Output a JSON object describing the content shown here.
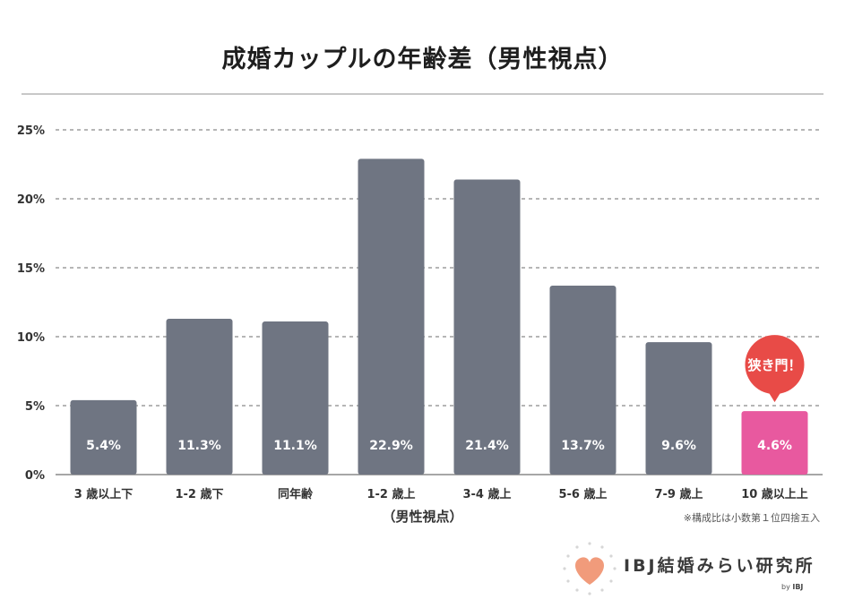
{
  "header": {
    "title": "成婚カップルの年齢差（男性視点）"
  },
  "chart_data": {
    "type": "bar",
    "categories": [
      "3 歳以上下",
      "1-2 歳下",
      "同年齢",
      "1-2 歳上",
      "3-4 歳上",
      "5-6 歳上",
      "7-9 歳上",
      "10 歳以上上"
    ],
    "values": [
      5.4,
      11.3,
      11.1,
      22.9,
      21.4,
      13.7,
      9.6,
      4.6
    ],
    "value_labels": [
      "5.4%",
      "11.3%",
      "11.1%",
      "22.9%",
      "21.4%",
      "13.7%",
      "9.6%",
      "4.6%"
    ],
    "xlabel": "（男性視点）",
    "ylim": [
      0,
      25
    ],
    "yticks": [
      0,
      5,
      10,
      15,
      20,
      25
    ],
    "ytick_labels": [
      "0%",
      "5%",
      "10%",
      "15%",
      "20%",
      "25%"
    ],
    "grid": true,
    "colors": {
      "bar": "#6f7582",
      "highlight": "#e8599f",
      "callout": "#e84b47",
      "grid": "#8a8a8a"
    },
    "highlight_index": 7,
    "annotation": "狭き門！"
  },
  "footnote": "※構成比は小数第１位四捨五入",
  "brand": {
    "name": "IBJ結婚みらい研究所",
    "by_prefix": "by",
    "by_name": "IBJ",
    "logo_icon": "heart-icon",
    "heart_color": "#f19b7b"
  }
}
